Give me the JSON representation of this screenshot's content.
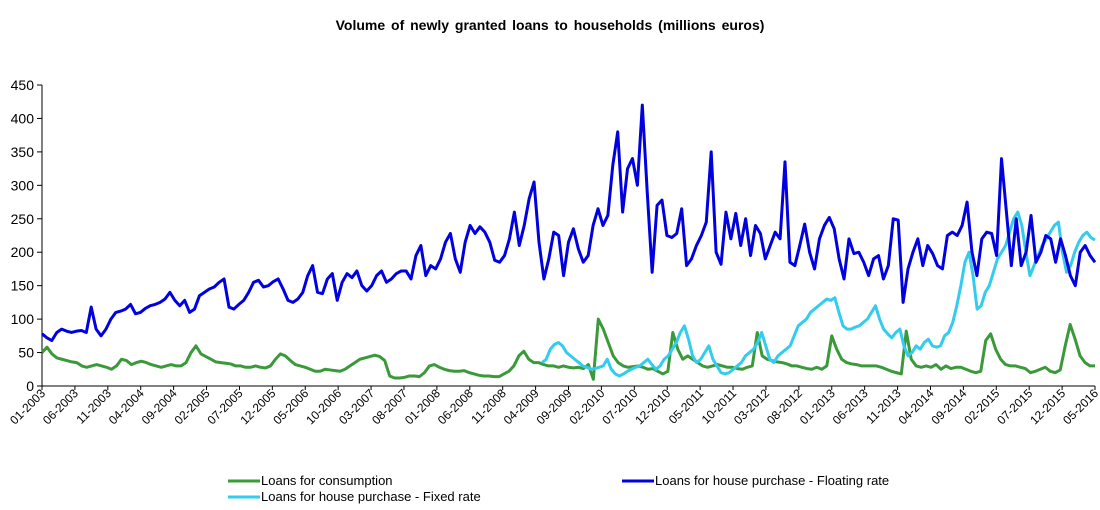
{
  "chart_data": {
    "type": "line",
    "title": "Volume of newly granted loans to households (millions euros)",
    "xlabel": "",
    "ylabel": "",
    "ylim": [
      0,
      450
    ],
    "yticks": [
      0,
      50,
      100,
      150,
      200,
      250,
      300,
      350,
      400,
      450
    ],
    "x_start": "01-2003",
    "x_end": "05-2016",
    "xtick_labels": [
      "01-2003",
      "06-2003",
      "11-2003",
      "04-2004",
      "09-2004",
      "02-2005",
      "07-2005",
      "12-2005",
      "05-2006",
      "10-2006",
      "03-2007",
      "08-2007",
      "01-2008",
      "06-2008",
      "11-2008",
      "04-2009",
      "09-2009",
      "02-2010",
      "07-2010",
      "12-2010",
      "05-2011",
      "10-2011",
      "03-2012",
      "08-2012",
      "01-2013",
      "06-2013",
      "11-2013",
      "04-2014",
      "09-2014",
      "02-2015",
      "07-2015",
      "12-2015",
      "05-2016"
    ],
    "grid": false,
    "legend_position": "bottom",
    "series": [
      {
        "name": "Loans for consumption",
        "color": "#3a9a3a",
        "values": [
          50,
          58,
          48,
          42,
          40,
          38,
          36,
          35,
          30,
          28,
          30,
          32,
          30,
          28,
          25,
          30,
          40,
          38,
          32,
          35,
          37,
          35,
          32,
          30,
          28,
          30,
          32,
          30,
          30,
          35,
          50,
          60,
          48,
          44,
          40,
          36,
          35,
          34,
          33,
          30,
          30,
          28,
          28,
          30,
          28,
          27,
          30,
          40,
          48,
          45,
          38,
          32,
          30,
          28,
          25,
          22,
          22,
          25,
          24,
          23,
          22,
          25,
          30,
          35,
          40,
          42,
          44,
          46,
          44,
          38,
          15,
          12,
          12,
          13,
          15,
          15,
          14,
          20,
          30,
          32,
          28,
          25,
          23,
          22,
          22,
          23,
          20,
          18,
          16,
          15,
          15,
          14,
          14,
          18,
          22,
          30,
          45,
          52,
          40,
          35,
          35,
          32,
          30,
          30,
          28,
          30,
          28,
          27,
          28,
          26,
          32,
          10,
          100,
          85,
          65,
          45,
          35,
          30,
          28,
          29,
          30,
          28,
          25,
          26,
          22,
          18,
          22,
          80,
          55,
          40,
          45,
          40,
          35,
          30,
          28,
          30,
          32,
          30,
          28,
          28,
          26,
          25,
          28,
          30,
          80,
          45,
          40,
          38,
          36,
          35,
          33,
          30,
          30,
          28,
          26,
          25,
          28,
          25,
          30,
          75,
          55,
          40,
          35,
          33,
          32,
          30,
          30,
          30,
          30,
          28,
          25,
          22,
          20,
          18,
          82,
          40,
          30,
          28,
          30,
          28,
          32,
          25,
          30,
          26,
          28,
          28,
          25,
          22,
          20,
          22,
          68,
          78,
          55,
          40,
          32,
          30,
          30,
          28,
          26,
          20,
          22,
          25,
          28,
          22,
          20,
          24,
          60,
          92,
          70,
          45,
          35,
          30,
          30
        ]
      },
      {
        "name": "Loans for house purchase - Floating rate",
        "color": "#0000e0",
        "values": [
          78,
          72,
          68,
          80,
          85,
          82,
          80,
          82,
          83,
          80,
          118,
          85,
          75,
          85,
          100,
          110,
          112,
          115,
          122,
          108,
          110,
          116,
          120,
          122,
          125,
          130,
          140,
          128,
          120,
          128,
          110,
          115,
          135,
          140,
          145,
          148,
          155,
          160,
          118,
          115,
          122,
          128,
          140,
          155,
          158,
          148,
          150,
          156,
          160,
          145,
          128,
          125,
          130,
          140,
          165,
          180,
          140,
          138,
          160,
          168,
          128,
          155,
          168,
          162,
          172,
          150,
          142,
          150,
          165,
          172,
          155,
          160,
          168,
          172,
          172,
          160,
          195,
          210,
          165,
          180,
          175,
          190,
          215,
          228,
          190,
          170,
          215,
          240,
          228,
          238,
          230,
          215,
          188,
          185,
          195,
          220,
          260,
          210,
          240,
          280,
          305,
          215,
          160,
          190,
          230,
          225,
          165,
          215,
          235,
          205,
          185,
          195,
          240,
          265,
          240,
          255,
          330,
          380,
          260,
          325,
          340,
          300,
          420,
          290,
          170,
          270,
          278,
          225,
          222,
          228,
          265,
          180,
          190,
          210,
          225,
          245,
          350,
          200,
          182,
          260,
          220,
          258,
          210,
          250,
          195,
          240,
          228,
          190,
          210,
          230,
          220,
          335,
          185,
          180,
          210,
          242,
          200,
          175,
          220,
          240,
          252,
          235,
          190,
          160,
          220,
          198,
          200,
          185,
          165,
          190,
          195,
          160,
          180,
          250,
          248,
          125,
          175,
          200,
          220,
          180,
          210,
          198,
          180,
          175,
          225,
          230,
          225,
          240,
          275,
          200,
          165,
          220,
          230,
          228,
          195,
          340,
          260,
          180,
          250,
          180,
          200,
          255,
          185,
          200,
          225,
          220,
          185,
          220,
          195,
          165,
          150,
          200,
          210,
          195,
          185
        ]
      },
      {
        "name": "Loans for house purchase - Fixed rate",
        "color": "#33ccee",
        "values": [
          null,
          null,
          null,
          null,
          null,
          null,
          null,
          null,
          null,
          null,
          null,
          null,
          null,
          null,
          null,
          null,
          null,
          null,
          null,
          null,
          null,
          null,
          null,
          null,
          null,
          null,
          null,
          null,
          null,
          null,
          null,
          null,
          null,
          null,
          null,
          null,
          null,
          null,
          null,
          null,
          null,
          null,
          null,
          null,
          null,
          null,
          null,
          null,
          null,
          null,
          null,
          null,
          null,
          null,
          null,
          null,
          null,
          null,
          null,
          null,
          null,
          null,
          null,
          null,
          null,
          null,
          null,
          null,
          null,
          null,
          null,
          null,
          null,
          null,
          null,
          null,
          null,
          null,
          null,
          null,
          null,
          null,
          null,
          null,
          null,
          null,
          null,
          null,
          null,
          null,
          null,
          null,
          null,
          null,
          null,
          null,
          null,
          null,
          null,
          null,
          null,
          null,
          null,
          null,
          null,
          null,
          null,
          null,
          null,
          null,
          null,
          null,
          null,
          null,
          null,
          null,
          null,
          null,
          null,
          null,
          null,
          null,
          null,
          null,
          null,
          null,
          null,
          null,
          null,
          null,
          null,
          null,
          null,
          null,
          null,
          null,
          null,
          null,
          null,
          null,
          null,
          null,
          null,
          null,
          null,
          null,
          null,
          null,
          null,
          null,
          null,
          null,
          null,
          null,
          null,
          null,
          null,
          null,
          null,
          null,
          null,
          null,
          null,
          null,
          null,
          null,
          null,
          null,
          null,
          null,
          null,
          null,
          null,
          null,
          null,
          null,
          null,
          null,
          null,
          null,
          null,
          null,
          null,
          null,
          null,
          null,
          null,
          null,
          null,
          null,
          null,
          null,
          null,
          null,
          null,
          null,
          null,
          null,
          null,
          null,
          null,
          null,
          null,
          null,
          null,
          null,
          null,
          null,
          null,
          null,
          null,
          null,
          null,
          null,
          null,
          null,
          null
        ]
      }
    ],
    "fixed_rate_segment": {
      "start_index": 72,
      "values": [
        35,
        40,
        55,
        62,
        65,
        60,
        50,
        45,
        40,
        35,
        30,
        28,
        25,
        26,
        28,
        30,
        40,
        25,
        18,
        15,
        18,
        22,
        25,
        28,
        30,
        35,
        40,
        32,
        25,
        30,
        40,
        45,
        55,
        65,
        80,
        90,
        70,
        45,
        35,
        40,
        50,
        60,
        40,
        30,
        20,
        18,
        20,
        25,
        30,
        35,
        45,
        50,
        55,
        65,
        80,
        60,
        40,
        35,
        45,
        50,
        55,
        60,
        75,
        90,
        95,
        100,
        110,
        115,
        120,
        125,
        130,
        128,
        132,
        110,
        90,
        85,
        85,
        88,
        90,
        95,
        100,
        110,
        120,
        100,
        85,
        78,
        72,
        80,
        85,
        60,
        45,
        50,
        60,
        55,
        65,
        70,
        60,
        58,
        60,
        75,
        80,
        95,
        120,
        150,
        185,
        200,
        165,
        115,
        120,
        140,
        150,
        170,
        190,
        200,
        210,
        230,
        250,
        260,
        240,
        200,
        165,
        180,
        195,
        210,
        220,
        230,
        240,
        245,
        200,
        170,
        180,
        200,
        215,
        225,
        230,
        222,
        218
      ]
    }
  }
}
